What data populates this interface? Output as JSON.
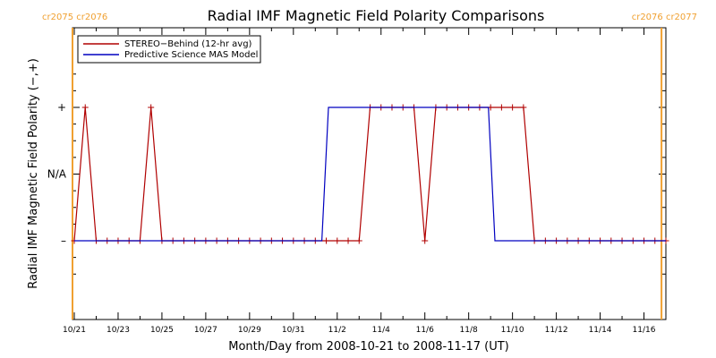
{
  "chart_data": {
    "type": "line",
    "title": "Radial IMF Magnetic Field Polarity Comparisons",
    "xlabel": "Month/Day from 2008-10-21 to 2008-11-17 (UT)",
    "ylabel": "Radial IMF Magnetic Field Polarity (−,+)",
    "x_start_date": "2008-10-21",
    "x_end_date": "2008-11-17",
    "x_unit": "days",
    "xlim": [
      0,
      27
    ],
    "ylim": [
      -1.5,
      1.5
    ],
    "y_ticks": [
      {
        "value": -1,
        "label": "–"
      },
      {
        "value": 0,
        "label": "N/A"
      },
      {
        "value": 1,
        "label": "+"
      }
    ],
    "x_ticks": [
      {
        "value": 0,
        "label": "10/21"
      },
      {
        "value": 2,
        "label": "10/23"
      },
      {
        "value": 4,
        "label": "10/25"
      },
      {
        "value": 6,
        "label": "10/27"
      },
      {
        "value": 8,
        "label": "10/29"
      },
      {
        "value": 10,
        "label": "10/31"
      },
      {
        "value": 12,
        "label": "11/2"
      },
      {
        "value": 14,
        "label": "11/4"
      },
      {
        "value": 16,
        "label": "11/6"
      },
      {
        "value": 18,
        "label": "11/8"
      },
      {
        "value": 20,
        "label": "11/10"
      },
      {
        "value": 22,
        "label": "11/12"
      },
      {
        "value": 24,
        "label": "11/14"
      },
      {
        "value": 26,
        "label": "11/16"
      }
    ],
    "carrington_markers": [
      {
        "x": 0,
        "labels": [
          "cr2075",
          "cr2076"
        ],
        "align": "left"
      },
      {
        "x": 26.8,
        "labels": [
          "cr2076",
          "cr2077"
        ],
        "align": "right"
      }
    ],
    "marker_color": "#f0a030",
    "legend": "top-left",
    "series": [
      {
        "name": "STEREO−Behind (12-hr avg)",
        "color": "#b00000",
        "marker": "+",
        "points": [
          [
            0,
            -1
          ],
          [
            0.5,
            1
          ],
          [
            1,
            -1
          ],
          [
            1.5,
            -1
          ],
          [
            2,
            -1
          ],
          [
            2.5,
            -1
          ],
          [
            3,
            -1
          ],
          [
            3.5,
            1
          ],
          [
            4,
            -1
          ],
          [
            4.5,
            -1
          ],
          [
            5,
            -1
          ],
          [
            5.5,
            -1
          ],
          [
            6,
            -1
          ],
          [
            6.5,
            -1
          ],
          [
            7,
            -1
          ],
          [
            7.5,
            -1
          ],
          [
            8,
            -1
          ],
          [
            8.5,
            -1
          ],
          [
            9,
            -1
          ],
          [
            9.5,
            -1
          ],
          [
            10,
            -1
          ],
          [
            10.5,
            -1
          ],
          [
            11,
            -1
          ],
          [
            11.5,
            -1
          ],
          [
            12,
            -1
          ],
          [
            12.5,
            -1
          ],
          [
            13,
            -1
          ],
          [
            13.5,
            1
          ],
          [
            14,
            1
          ],
          [
            14.5,
            1
          ],
          [
            15,
            1
          ],
          [
            15.5,
            1
          ],
          [
            16,
            -1
          ],
          [
            16.5,
            1
          ],
          [
            17,
            1
          ],
          [
            17.5,
            1
          ],
          [
            18,
            1
          ],
          [
            18.5,
            1
          ],
          [
            19,
            1
          ],
          [
            19.5,
            1
          ],
          [
            20,
            1
          ],
          [
            20.5,
            1
          ],
          [
            21,
            -1
          ],
          [
            21.5,
            -1
          ],
          [
            22,
            -1
          ],
          [
            22.5,
            -1
          ],
          [
            23,
            -1
          ],
          [
            23.5,
            -1
          ],
          [
            24,
            -1
          ],
          [
            24.5,
            -1
          ],
          [
            25,
            -1
          ],
          [
            25.5,
            -1
          ],
          [
            26,
            -1
          ],
          [
            26.5,
            -1
          ],
          [
            27,
            -1
          ]
        ]
      },
      {
        "name": "Predictive Science MAS Model",
        "color": "#0000c0",
        "points": [
          [
            0,
            -1
          ],
          [
            11.3,
            -1
          ],
          [
            11.6,
            1
          ],
          [
            18.9,
            1
          ],
          [
            19.2,
            -1
          ],
          [
            27,
            -1
          ]
        ]
      }
    ]
  }
}
